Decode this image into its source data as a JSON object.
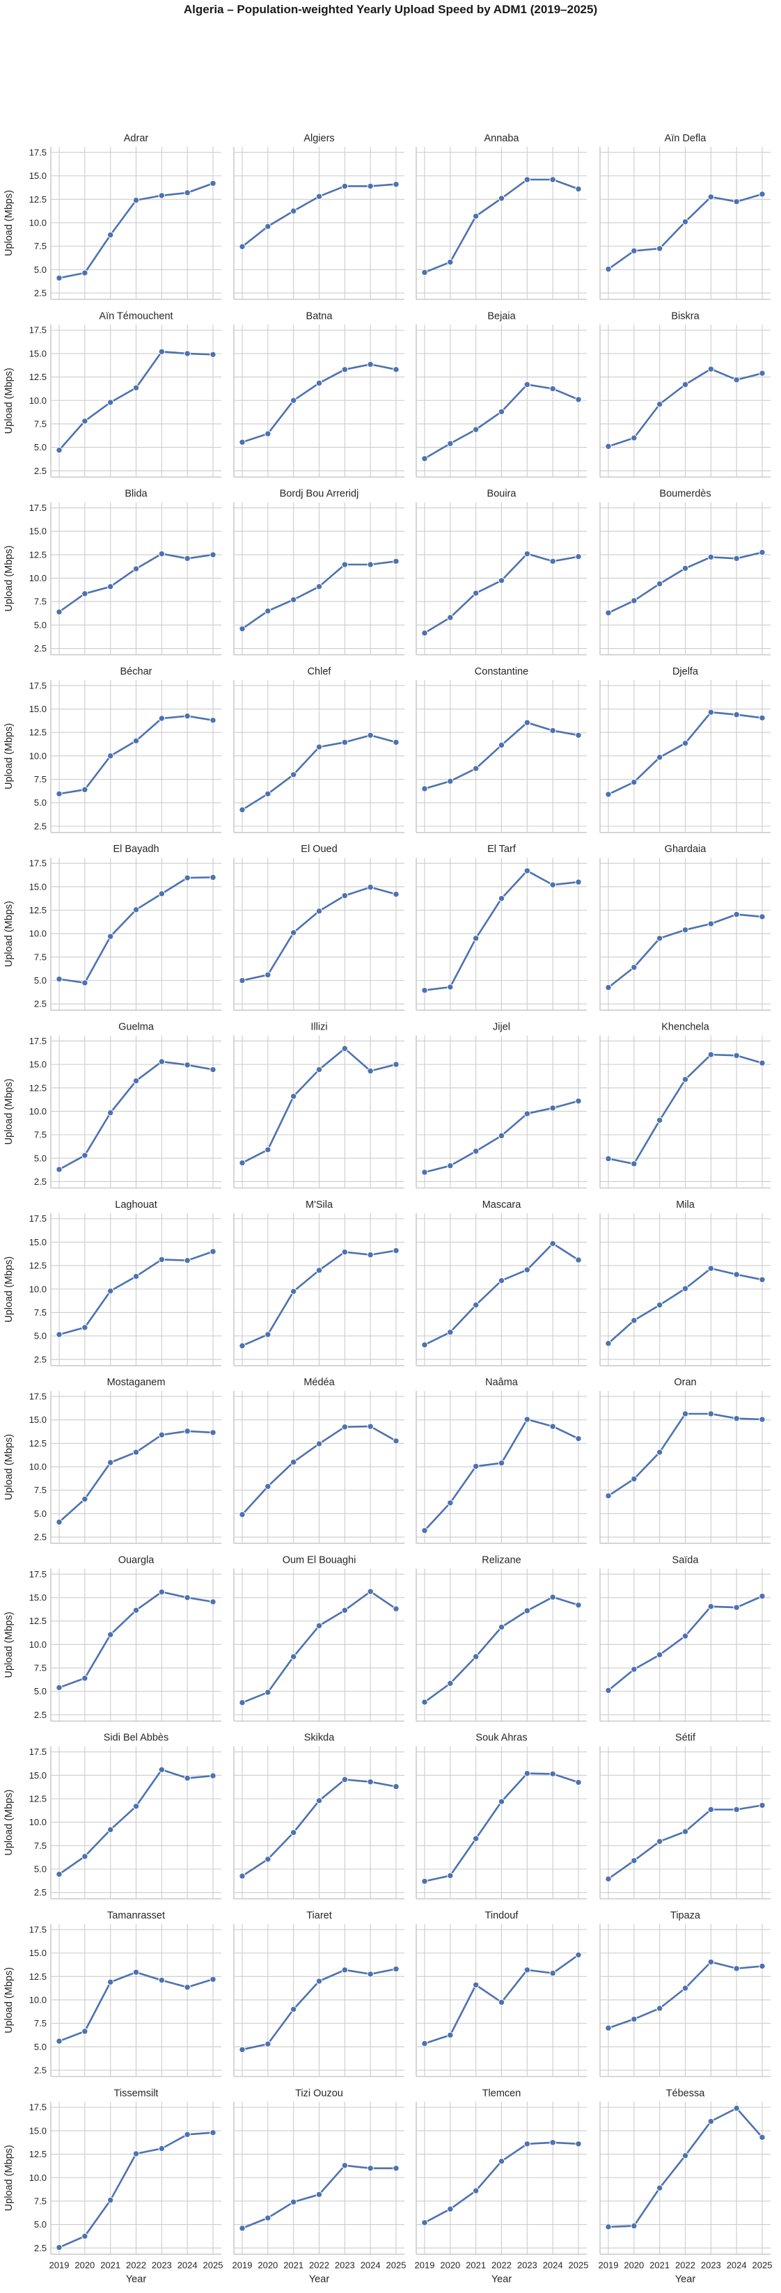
{
  "figure": {
    "title": "Algeria – Population-weighted Yearly Upload Speed by ADM1 (2019–2025)"
  },
  "colors": {
    "line": "#4c72b0",
    "grid": "#cccccc",
    "background": "#ffffff"
  },
  "chart_data": {
    "type": "line",
    "title": "Algeria – Population-weighted Yearly Upload Speed by ADM1 (2019–2025)",
    "xlabel": "Year",
    "ylabel": "Upload (Mbps)",
    "x": [
      2019,
      2020,
      2021,
      2022,
      2023,
      2024,
      2025
    ],
    "x_tick_labels": [
      "2019",
      "2020",
      "2021",
      "2022",
      "2023",
      "2024",
      "2025"
    ],
    "y_ticks": [
      2.5,
      5.0,
      7.5,
      10.0,
      12.5,
      15.0,
      17.5
    ],
    "y_tick_labels": [
      "2.5",
      "5.0",
      "7.5",
      "10.0",
      "12.5",
      "15.0",
      "17.5"
    ],
    "ylim": [
      1.83,
      18.09
    ],
    "grid": true,
    "shared_axes": true,
    "layout": {
      "rows": 12,
      "cols": 4
    },
    "marker": "circle",
    "series": [
      {
        "name": "Adrar",
        "values": [
          4.1,
          4.65,
          8.7,
          12.4,
          12.9,
          13.2,
          14.2
        ]
      },
      {
        "name": "Algiers",
        "values": [
          7.45,
          9.6,
          11.25,
          12.8,
          13.9,
          13.9,
          14.1
        ]
      },
      {
        "name": "Annaba",
        "values": [
          4.7,
          5.8,
          10.7,
          12.6,
          14.6,
          14.6,
          13.6
        ]
      },
      {
        "name": "Aïn Defla",
        "values": [
          5.05,
          7.0,
          7.25,
          10.1,
          12.75,
          12.25,
          13.05
        ]
      },
      {
        "name": "Aïn Témouchent",
        "values": [
          4.7,
          7.8,
          9.8,
          11.35,
          15.2,
          15.0,
          14.9
        ]
      },
      {
        "name": "Batna",
        "values": [
          5.55,
          6.45,
          10.0,
          11.85,
          13.3,
          13.85,
          13.3
        ]
      },
      {
        "name": "Bejaia",
        "values": [
          3.8,
          5.4,
          6.9,
          8.8,
          11.7,
          11.25,
          10.1
        ]
      },
      {
        "name": "Biskra",
        "values": [
          5.1,
          6.0,
          9.6,
          11.7,
          13.35,
          12.2,
          12.9
        ]
      },
      {
        "name": "Blida",
        "values": [
          6.4,
          8.35,
          9.1,
          11.0,
          12.6,
          12.1,
          12.5
        ]
      },
      {
        "name": "Bordj Bou Arreridj",
        "values": [
          4.6,
          6.5,
          7.7,
          9.1,
          11.45,
          11.45,
          11.8
        ]
      },
      {
        "name": "Bouira",
        "values": [
          4.15,
          5.8,
          8.4,
          9.75,
          12.6,
          11.8,
          12.3
        ]
      },
      {
        "name": "Boumerdès",
        "values": [
          6.3,
          7.6,
          9.4,
          11.05,
          12.25,
          12.1,
          12.75
        ]
      },
      {
        "name": "Béchar",
        "values": [
          5.95,
          6.4,
          10.0,
          11.6,
          14.0,
          14.25,
          13.8
        ]
      },
      {
        "name": "Chlef",
        "values": [
          4.25,
          5.95,
          8.0,
          10.95,
          11.45,
          12.2,
          11.45
        ]
      },
      {
        "name": "Constantine",
        "values": [
          6.5,
          7.3,
          8.65,
          11.15,
          13.55,
          12.7,
          12.2
        ]
      },
      {
        "name": "Djelfa",
        "values": [
          5.9,
          7.2,
          9.85,
          11.35,
          14.65,
          14.4,
          14.05
        ]
      },
      {
        "name": "El Bayadh",
        "values": [
          5.15,
          4.75,
          9.7,
          12.55,
          14.25,
          15.95,
          16.0
        ]
      },
      {
        "name": "El Oued",
        "values": [
          5.0,
          5.6,
          10.1,
          12.4,
          14.05,
          14.95,
          14.2
        ]
      },
      {
        "name": "El Tarf",
        "values": [
          3.95,
          4.3,
          9.5,
          13.75,
          16.7,
          15.2,
          15.5
        ]
      },
      {
        "name": "Ghardaia",
        "values": [
          4.25,
          6.4,
          9.5,
          10.4,
          11.05,
          12.05,
          11.8
        ]
      },
      {
        "name": "Guelma",
        "values": [
          3.8,
          5.3,
          9.85,
          13.25,
          15.3,
          14.95,
          14.45
        ]
      },
      {
        "name": "Illizi",
        "values": [
          4.5,
          5.9,
          11.6,
          14.45,
          16.7,
          14.3,
          15.0
        ]
      },
      {
        "name": "Jijel",
        "values": [
          3.5,
          4.2,
          5.75,
          7.4,
          9.75,
          10.35,
          11.1
        ]
      },
      {
        "name": "Khenchela",
        "values": [
          4.95,
          4.4,
          9.05,
          13.4,
          16.05,
          15.95,
          15.15
        ]
      },
      {
        "name": "Laghouat",
        "values": [
          5.15,
          5.9,
          9.8,
          11.35,
          13.15,
          13.05,
          14.0
        ]
      },
      {
        "name": "M'Sila",
        "values": [
          3.95,
          5.15,
          9.75,
          12.0,
          13.95,
          13.65,
          14.1
        ]
      },
      {
        "name": "Mascara",
        "values": [
          4.05,
          5.4,
          8.3,
          10.9,
          12.05,
          14.85,
          13.1
        ]
      },
      {
        "name": "Mila",
        "values": [
          4.2,
          6.65,
          8.3,
          10.05,
          12.2,
          11.55,
          11.0
        ]
      },
      {
        "name": "Mostaganem",
        "values": [
          4.1,
          6.55,
          10.45,
          11.55,
          13.4,
          13.8,
          13.65
        ]
      },
      {
        "name": "Médéa",
        "values": [
          4.9,
          7.9,
          10.5,
          12.45,
          14.25,
          14.3,
          12.75
        ]
      },
      {
        "name": "Naâma",
        "values": [
          3.2,
          6.15,
          10.05,
          10.4,
          15.05,
          14.3,
          13.0
        ]
      },
      {
        "name": "Oran",
        "values": [
          6.9,
          8.7,
          11.55,
          15.65,
          15.65,
          15.15,
          15.05
        ]
      },
      {
        "name": "Ouargla",
        "values": [
          5.4,
          6.4,
          11.05,
          13.65,
          15.6,
          15.0,
          14.55
        ]
      },
      {
        "name": "Oum El Bouaghi",
        "values": [
          3.8,
          4.9,
          8.7,
          12.0,
          13.65,
          15.65,
          13.8
        ]
      },
      {
        "name": "Relizane",
        "values": [
          3.85,
          5.85,
          8.7,
          11.85,
          13.6,
          15.05,
          14.2
        ]
      },
      {
        "name": "Saïda",
        "values": [
          5.1,
          7.35,
          8.9,
          10.9,
          14.05,
          13.95,
          15.15
        ]
      },
      {
        "name": "Sidi Bel Abbès",
        "values": [
          4.45,
          6.35,
          9.2,
          11.7,
          15.6,
          14.7,
          14.95
        ]
      },
      {
        "name": "Skikda",
        "values": [
          4.25,
          6.05,
          8.9,
          12.3,
          14.55,
          14.3,
          13.8
        ]
      },
      {
        "name": "Souk Ahras",
        "values": [
          3.7,
          4.3,
          8.25,
          12.2,
          15.2,
          15.15,
          14.25
        ]
      },
      {
        "name": "Sétif",
        "values": [
          3.95,
          5.9,
          7.95,
          9.0,
          11.35,
          11.35,
          11.8
        ]
      },
      {
        "name": "Tamanrasset",
        "values": [
          5.6,
          6.65,
          11.9,
          12.95,
          12.1,
          11.35,
          12.2
        ]
      },
      {
        "name": "Tiaret",
        "values": [
          4.7,
          5.3,
          9.0,
          12.0,
          13.2,
          12.75,
          13.3
        ]
      },
      {
        "name": "Tindouf",
        "values": [
          5.35,
          6.25,
          11.6,
          9.75,
          13.2,
          12.85,
          14.8
        ]
      },
      {
        "name": "Tipaza",
        "values": [
          7.0,
          7.95,
          9.1,
          11.25,
          14.05,
          13.35,
          13.6
        ]
      },
      {
        "name": "Tissemsilt",
        "values": [
          2.55,
          3.75,
          7.6,
          12.55,
          13.1,
          14.6,
          14.8
        ]
      },
      {
        "name": "Tizi Ouzou",
        "values": [
          4.6,
          5.7,
          7.4,
          8.2,
          11.3,
          11.0,
          11.0
        ]
      },
      {
        "name": "Tlemcen",
        "values": [
          5.2,
          6.65,
          8.6,
          11.75,
          13.6,
          13.75,
          13.6
        ]
      },
      {
        "name": "Tébessa",
        "values": [
          4.75,
          4.85,
          8.9,
          12.35,
          16.0,
          17.4,
          14.3
        ]
      }
    ]
  }
}
